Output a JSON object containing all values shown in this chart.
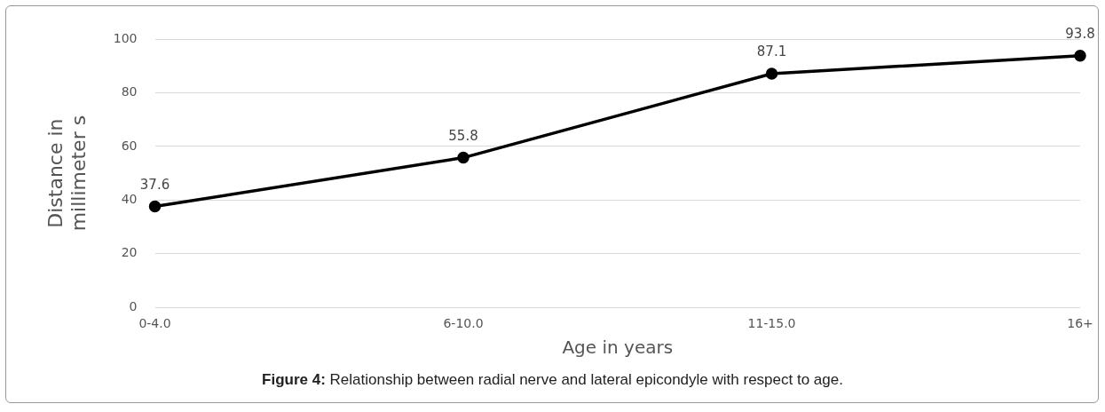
{
  "chart_data": {
    "type": "line",
    "xlabel": "Age in years",
    "ylabel": "Distance in millimeter s",
    "categories": [
      "0-4.0",
      "6-10.0",
      "11-15.0",
      "16+"
    ],
    "series": [
      {
        "color": "#000000",
        "values": [
          37.6,
          55.8,
          87.1,
          93.8
        ]
      }
    ],
    "ylim": [
      0,
      100
    ],
    "yticks": [
      0,
      20,
      40,
      60,
      80,
      100
    ],
    "grid": "y",
    "legend": false,
    "marker": "circle",
    "line_style": "solid",
    "data_labels": true,
    "annotations": [
      "Figure 4: Relationship between radial nerve and lateral epicondyle with respect to age."
    ]
  }
}
